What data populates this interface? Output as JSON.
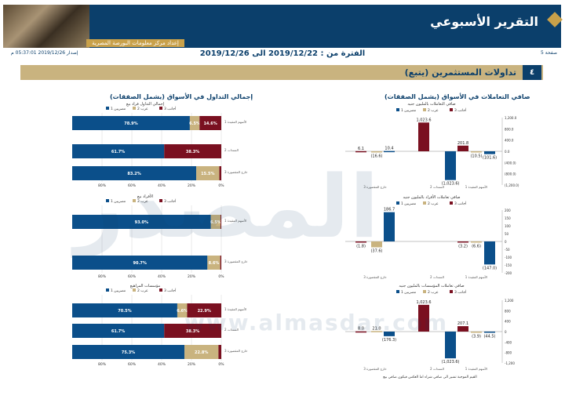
{
  "header": {
    "title": "التقرير الأسبوعي",
    "subtitle": "إعداد مركز معلومات البورصة المصرية",
    "page_label": "صفحة 5",
    "issued": "إصدار 2019/12/26 05:37:01 م",
    "period": "الفترة من : 2019/12/22 الى 2019/12/26"
  },
  "section": {
    "number": "٤",
    "title": "تداولات المستثمرين (يتبع)"
  },
  "left_title": "إجمالي التداول في الأسواق (يشمل الصفقات)",
  "right_title": "صافي التعاملات في الأسواق (يشمل الصفقات)",
  "watermark": {
    "arabic": "المصدر",
    "url": "www.almasdar.com"
  },
  "colors": {
    "egyptians": "#0b4f8a",
    "arabs": "#c9b37f",
    "foreigners": "#7a1020",
    "grid": "#cccccc"
  },
  "chart_data": [
    {
      "type": "bar",
      "orientation": "horizontal",
      "stacked": true,
      "title": "إجمالي التداول فراد بيع",
      "legend": [
        "مصريين 1",
        "عرب 2",
        "أجانب 3"
      ],
      "categories": [
        "الأسهم المقيدة 1",
        "السندات 2",
        "خارج المقصورة 3"
      ],
      "series": [
        {
          "name": "مصريين 1",
          "values": [
            78.9,
            61.7,
            83.2
          ]
        },
        {
          "name": "عرب 2",
          "values": [
            6.5,
            0,
            15.5
          ]
        },
        {
          "name": "أجانب 3",
          "values": [
            14.6,
            38.3,
            1.3
          ]
        }
      ],
      "labels": [
        [
          "78.9%",
          "6.5%",
          "14.6%"
        ],
        [
          "61.7%",
          "",
          "38.3%"
        ],
        [
          "83.2%",
          "15.5%",
          ""
        ]
      ],
      "xticks": [
        "80%",
        "60%",
        "40%",
        "20%",
        "0%"
      ]
    },
    {
      "type": "bar",
      "orientation": "horizontal",
      "stacked": true,
      "title": "الأفراد بيع",
      "legend": [
        "مصريين 1",
        "عرب 2",
        "أجانب 3"
      ],
      "categories": [
        "الأسهم المقيدة 1",
        "خارج المقصورة 3"
      ],
      "series": [
        {
          "name": "مصريين 1",
          "values": [
            93.0,
            90.7
          ]
        },
        {
          "name": "عرب 2",
          "values": [
            6.5,
            8.6
          ]
        },
        {
          "name": "أجانب 3",
          "values": [
            0.5,
            0.7
          ]
        }
      ],
      "labels": [
        [
          "93.0%",
          "6.5%",
          ""
        ],
        [
          "90.7%",
          "8.6%",
          ""
        ]
      ],
      "xticks": [
        "80%",
        "60%",
        "40%",
        "20%",
        "0%"
      ]
    },
    {
      "type": "bar",
      "orientation": "horizontal",
      "stacked": true,
      "title": "مؤسسات المراهيع",
      "legend": [
        "مصريين 1",
        "عرب 2",
        "أجانب 3"
      ],
      "categories": [
        "الأسهم المقيدة 1",
        "السندات 2",
        "خارج المقصورة 3"
      ],
      "series": [
        {
          "name": "مصريين 1",
          "values": [
            70.5,
            61.7,
            75.3
          ]
        },
        {
          "name": "عرب 2",
          "values": [
            6.6,
            0,
            22.8
          ]
        },
        {
          "name": "أجانب 3",
          "values": [
            22.9,
            38.3,
            1.9
          ]
        }
      ],
      "labels": [
        [
          "70.5%",
          "6.6%",
          "22.9%"
        ],
        [
          "61.7%",
          "",
          "38.3%"
        ],
        [
          "75.3%",
          "22.8%",
          ""
        ]
      ],
      "xticks": [
        "80%",
        "60%",
        "40%",
        "20%",
        "0%"
      ]
    },
    {
      "type": "bar",
      "title": "صافي التعاملات بالمليون جنيه",
      "legend": [
        "مصريين 1",
        "عرب 2",
        "أجانب 3"
      ],
      "categories": [
        "خارج المقصورة 3",
        "السندات 2",
        "الأسهم المقيدة 1"
      ],
      "series": [
        {
          "name": "مصريين 1",
          "values": [
            10.4,
            -1023.6,
            -101.6
          ]
        },
        {
          "name": "عرب 2",
          "values": [
            -16.6,
            0,
            -10.5
          ]
        },
        {
          "name": "أجانب 3",
          "values": [
            6.1,
            1023.6,
            201.8
          ]
        }
      ],
      "labels": [
        "6.1",
        "(16.6)",
        "10.4",
        "1,023.6",
        "(1,023.6)",
        "201.8",
        "(10.5)",
        "(101.6)"
      ],
      "ylim": [
        -1200,
        1200
      ],
      "yticks": [
        "1,200.0",
        "800.0",
        "400.0",
        "0.0",
        "(400.0)",
        "(800.0)",
        "(1,200.0)"
      ]
    },
    {
      "type": "bar",
      "title": "صافي تعاملات الأفراد بالمليون جنيه",
      "legend": [
        "مصريين 1",
        "عرب 2",
        "أجانب 3"
      ],
      "categories": [
        "خارج المقصورة 3",
        "السندات 2",
        "الأسهم المقيدة 1"
      ],
      "series": [
        {
          "name": "مصريين 1",
          "values": [
            186.7,
            0,
            -147.0
          ]
        },
        {
          "name": "عرب 2",
          "values": [
            -37.6,
            0,
            -6.6
          ]
        },
        {
          "name": "أجانب 3",
          "values": [
            -1.8,
            0,
            -3.2
          ]
        }
      ],
      "labels": [
        "(1.8)",
        "(37.6)",
        "186.7",
        "(3.2)",
        "(6.6)",
        "(147.0)"
      ],
      "ylim": [
        -200,
        200
      ],
      "yticks": [
        "200",
        "150",
        "100",
        "50",
        "0",
        "-50",
        "-100",
        "-150",
        "-200"
      ]
    },
    {
      "type": "bar",
      "title": "صافي تعاملات المؤسسات بالمليون جنيه",
      "legend": [
        "مصريين 1",
        "عرب 2",
        "أجانب 3"
      ],
      "categories": [
        "خارج المقصورة 3",
        "السندات 2",
        "الأسهم المقيدة 1"
      ],
      "series": [
        {
          "name": "مصريين 1",
          "values": [
            -176.3,
            -1023.6,
            -44.5
          ]
        },
        {
          "name": "عرب 2",
          "values": [
            21.0,
            0,
            -3.9
          ]
        },
        {
          "name": "أجانب 3",
          "values": [
            8.0,
            1023.6,
            207.1
          ]
        }
      ],
      "labels": [
        "8.0",
        "21.0",
        "(176.3)",
        "1,023.6",
        "(1,023.6)",
        "207.1",
        "(3.9)",
        "(44.5)"
      ],
      "ylim": [
        -1200,
        1200
      ],
      "yticks": [
        "1,200",
        "800",
        "400",
        "0",
        "-400",
        "-800",
        "-1,200"
      ],
      "note": "القيم الموجبة تشير الى صافي شراء اما العكس فيكون صافي بيع"
    }
  ]
}
